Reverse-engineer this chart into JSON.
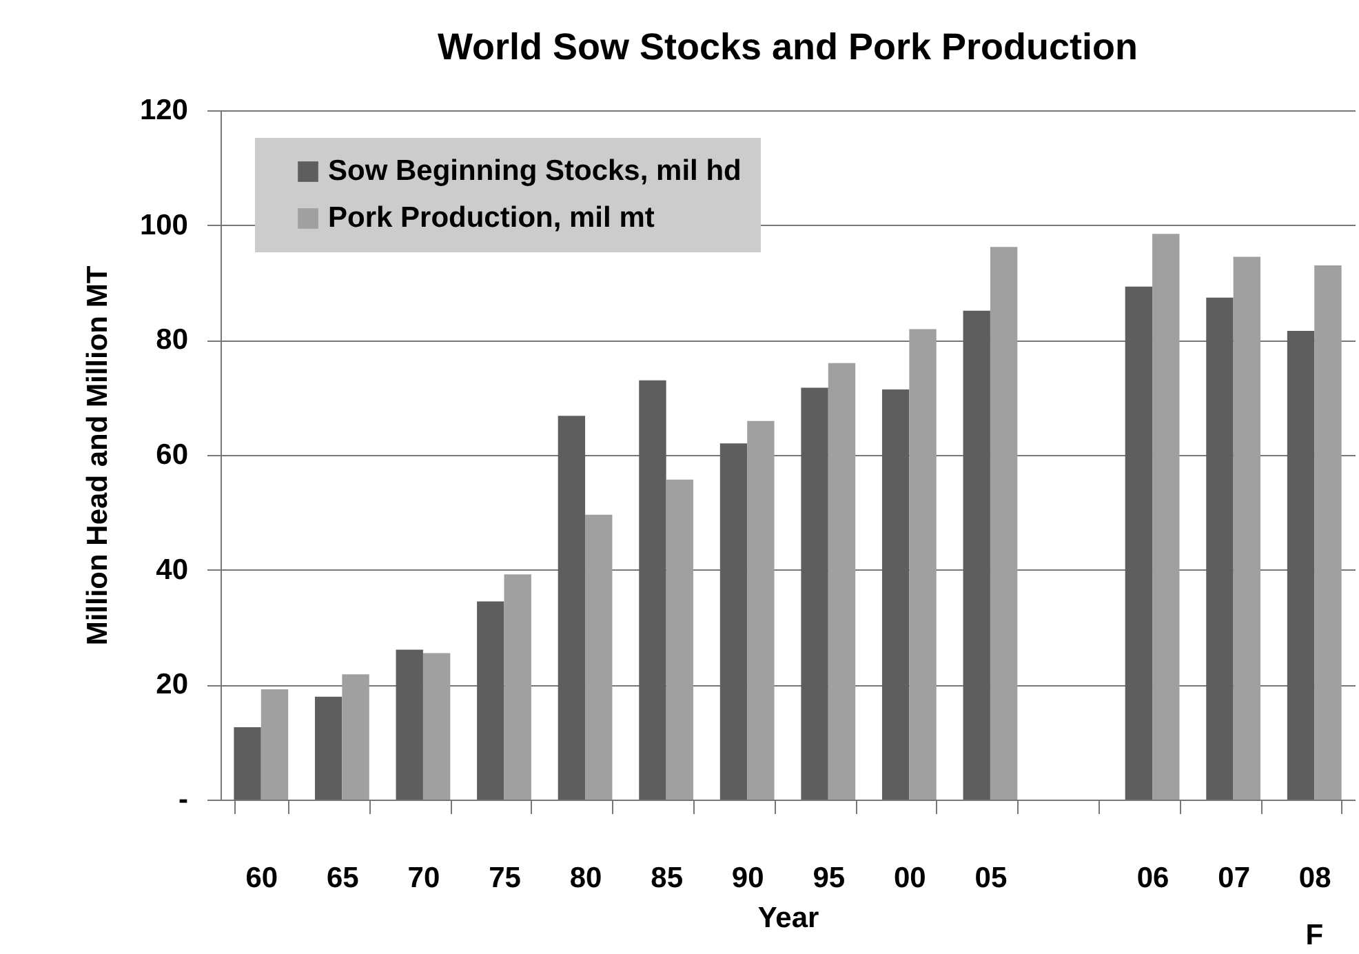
{
  "chart_data": {
    "type": "bar",
    "title": "World Sow Stocks and Pork Production",
    "xlabel": "Year",
    "ylabel": "Million Head and Million MT",
    "categories": [
      "60",
      "65",
      "70",
      "75",
      "80",
      "85",
      "90",
      "95",
      "00",
      "05",
      null,
      "06",
      "07",
      "08"
    ],
    "series": [
      {
        "name": "Sow Beginning Stocks, mil hd",
        "color": "#5e5e5e",
        "values": [
          12.6,
          17.9,
          26.1,
          34.5,
          66.8,
          73.0,
          62.0,
          71.7,
          71.4,
          85.1,
          null,
          89.3,
          87.4,
          81.6
        ]
      },
      {
        "name": "Pork Production, mil mt",
        "color": "#a0a0a0",
        "values": [
          19.2,
          21.8,
          25.5,
          39.2,
          49.6,
          55.7,
          65.9,
          76.0,
          81.9,
          96.2,
          null,
          98.5,
          94.5,
          93.0
        ]
      }
    ],
    "ylim": [
      0,
      120
    ],
    "yticks": [
      {
        "value": 0,
        "label": "-"
      },
      20,
      40,
      60,
      80,
      100,
      120
    ],
    "grid": "y",
    "legend": "top left",
    "annotations": [
      "F"
    ]
  }
}
